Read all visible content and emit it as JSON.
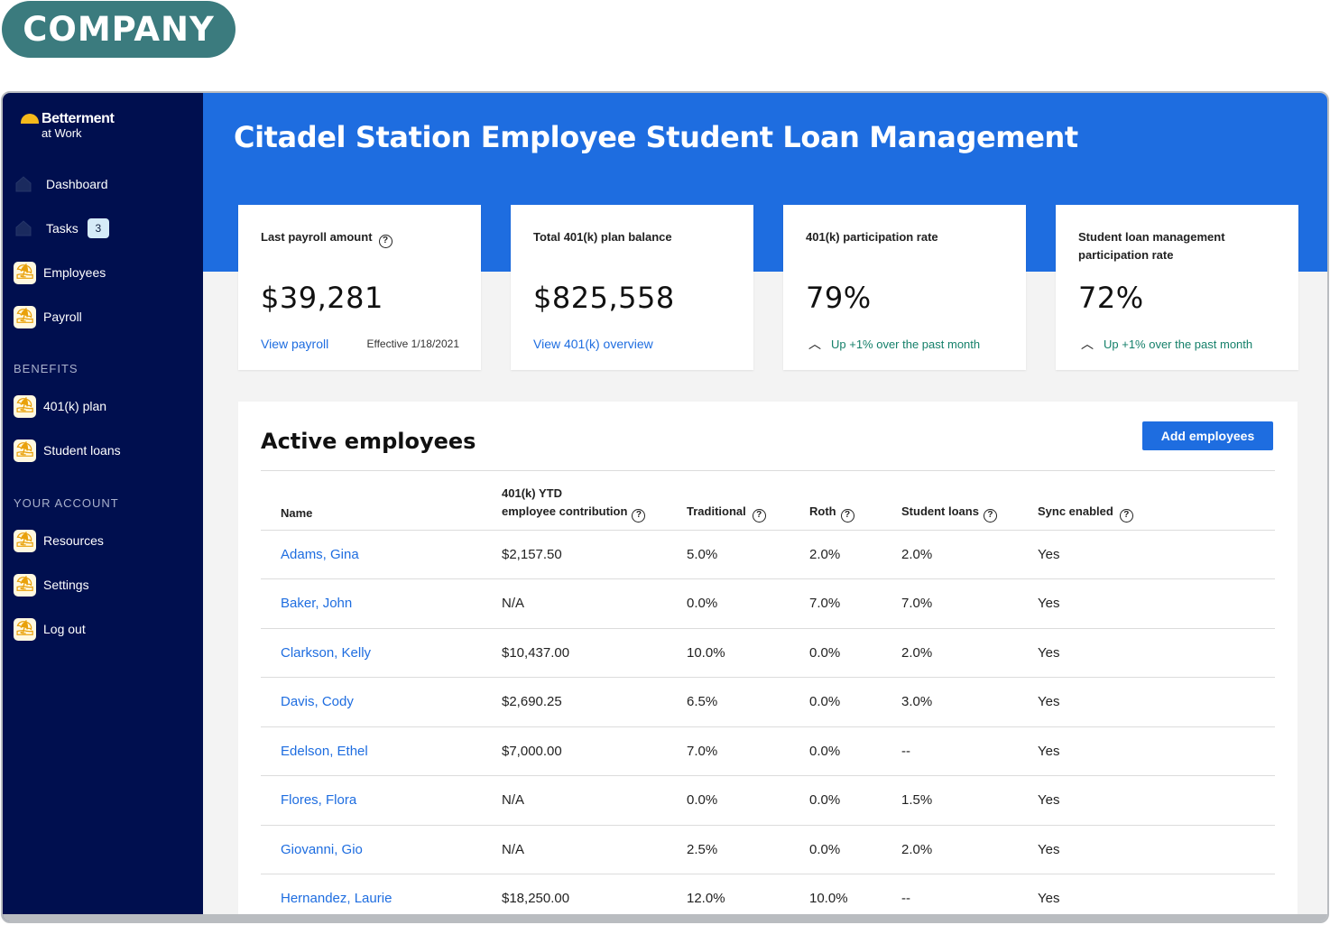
{
  "overlay_badge": "COMPANY",
  "brand": {
    "name": "Betterment",
    "sub": "at Work"
  },
  "sidebar": {
    "nav": [
      {
        "label": "Dashboard",
        "icon": "home-icon"
      },
      {
        "label": "Tasks",
        "icon": "home-icon",
        "count": "3"
      },
      {
        "label": "Employees",
        "icon": "betterment-logo-icon"
      },
      {
        "label": "Payroll",
        "icon": "betterment-logo-icon"
      }
    ],
    "benefits_label": "BENEFITS",
    "benefits": [
      {
        "label": "401(k) plan",
        "icon": "betterment-logo-icon"
      },
      {
        "label": "Student loans",
        "icon": "betterment-logo-icon"
      }
    ],
    "account_label": "YOUR ACCOUNT",
    "account": [
      {
        "label": "Resources",
        "icon": "betterment-logo-icon"
      },
      {
        "label": "Settings",
        "icon": "betterment-logo-icon"
      },
      {
        "label": "Log out",
        "icon": "betterment-logo-icon"
      }
    ]
  },
  "header": {
    "title": "Citadel Station Employee Student Loan Management"
  },
  "cards": [
    {
      "label": "Last payroll amount",
      "value": "$39,281",
      "link": "View payroll",
      "note": "Effective 1/18/2021"
    },
    {
      "label": "Total 401(k) plan balance",
      "value": "$825,558",
      "link": "View 401(k) overview"
    },
    {
      "label": "401(k) participation rate",
      "value": "79%",
      "trend": "Up +1% over the past month"
    },
    {
      "label": "Student loan management participation rate",
      "value": "72%",
      "trend": "Up +1% over the past month"
    }
  ],
  "employees": {
    "title": "Active employees",
    "add_button": "Add employees",
    "columns": {
      "name": "Name",
      "contrib_line1": "401(k) YTD",
      "contrib_line2": "employee contribution",
      "traditional": "Traditional",
      "roth": "Roth",
      "student_loans": "Student loans",
      "sync": "Sync enabled"
    },
    "rows": [
      {
        "name": "Adams, Gina",
        "contribution": "$2,157.50",
        "traditional": "5.0%",
        "roth": "2.0%",
        "student_loans": "2.0%",
        "sync": "Yes"
      },
      {
        "name": "Baker, John",
        "contribution": "N/A",
        "traditional": "0.0%",
        "roth": "7.0%",
        "student_loans": "7.0%",
        "sync": "Yes"
      },
      {
        "name": "Clarkson, Kelly",
        "contribution": "$10,437.00",
        "traditional": "10.0%",
        "roth": "0.0%",
        "student_loans": "2.0%",
        "sync": "Yes"
      },
      {
        "name": "Davis, Cody",
        "contribution": "$2,690.25",
        "traditional": "6.5%",
        "roth": "0.0%",
        "student_loans": "3.0%",
        "sync": "Yes"
      },
      {
        "name": "Edelson, Ethel",
        "contribution": "$7,000.00",
        "traditional": "7.0%",
        "roth": "0.0%",
        "student_loans": "--",
        "sync": "Yes"
      },
      {
        "name": "Flores, Flora",
        "contribution": "N/A",
        "traditional": "0.0%",
        "roth": "0.0%",
        "student_loans": "1.5%",
        "sync": "Yes"
      },
      {
        "name": "Giovanni, Gio",
        "contribution": "N/A",
        "traditional": "2.5%",
        "roth": "0.0%",
        "student_loans": "2.0%",
        "sync": "Yes"
      },
      {
        "name": "Hernandez, Laurie",
        "contribution": "$18,250.00",
        "traditional": "12.0%",
        "roth": "10.0%",
        "student_loans": "--",
        "sync": "Yes"
      }
    ]
  },
  "colors": {
    "primary": "#1e6de0",
    "sidebar": "#000f4f",
    "badge": "#3b7b7e",
    "trend": "#15806a",
    "brand_yellow": "#f6b91b"
  }
}
